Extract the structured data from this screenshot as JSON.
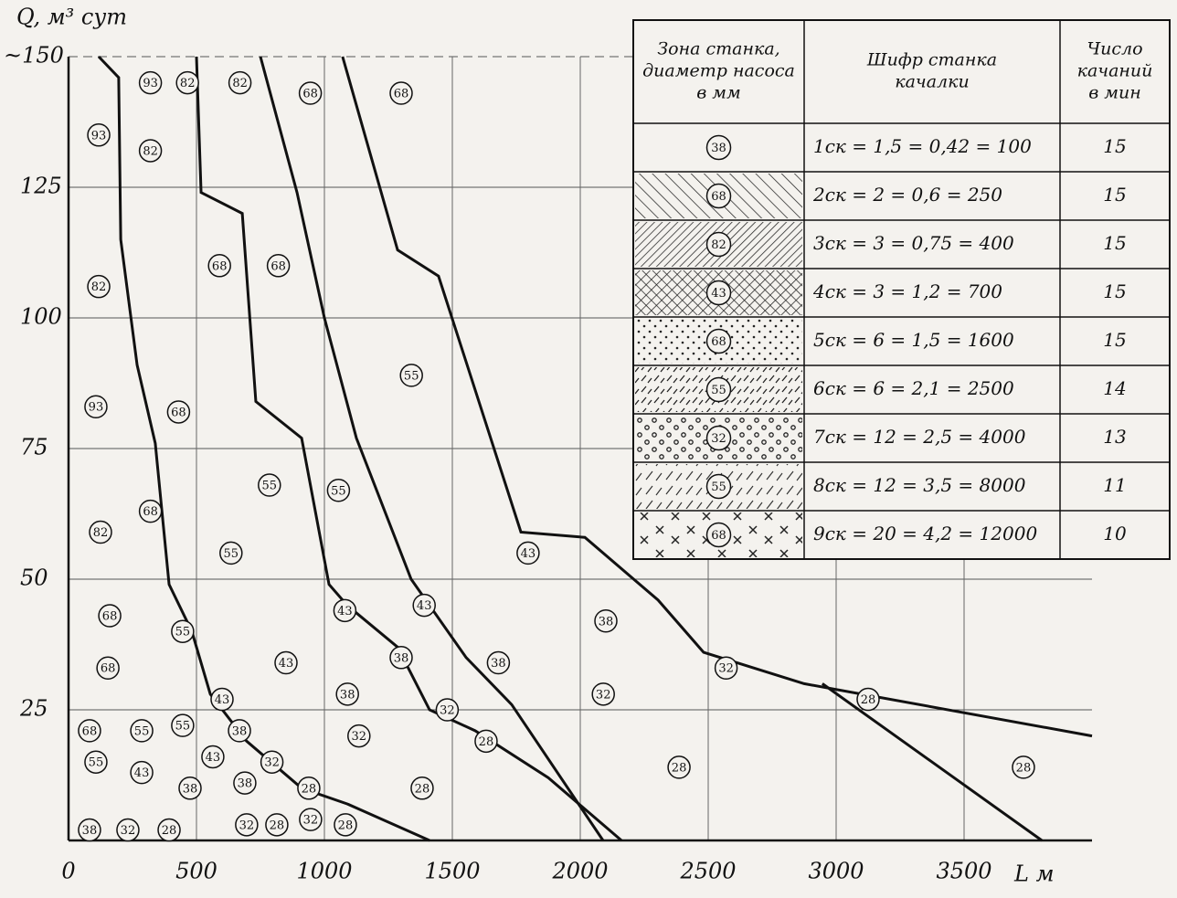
{
  "chart_data": {
    "type": "zones",
    "y_label": "Q, м³ сут",
    "x_label": "L м",
    "xlim": [
      0,
      4000
    ],
    "ylim": [
      0,
      150
    ],
    "xticks": [
      0,
      500,
      1000,
      1500,
      2000,
      2500,
      3000,
      3500
    ],
    "yticks": [
      25,
      50,
      75,
      100,
      125,
      {
        "value": 150,
        "label": "~150"
      }
    ],
    "grid": true,
    "series": [
      {
        "color": "#111",
        "x": [
          1071,
          1286,
          1446,
          1768,
          2018,
          2304,
          2482,
          2875,
          4000
        ],
        "values": [
          150,
          113,
          108,
          59,
          58,
          46,
          36,
          30,
          20
        ]
      },
      {
        "color": "#111",
        "x": [
          750,
          893,
          1000,
          1125,
          1339,
          1554,
          1732,
          2089
        ],
        "values": [
          150,
          124,
          100,
          77,
          50,
          35,
          26,
          0
        ]
      },
      {
        "color": "#111",
        "x": [
          500,
          518,
          679,
          732,
          911,
          1018,
          1089,
          1286,
          1411,
          1589,
          1875,
          2161
        ],
        "values": [
          150,
          124,
          120,
          84,
          77,
          49,
          45,
          37,
          25,
          21,
          12,
          0
        ]
      },
      {
        "color": "#111",
        "x": [
          118,
          196,
          204,
          268,
          339,
          393,
          482,
          554,
          696,
          911,
          1089,
          1411
        ],
        "values": [
          150,
          146,
          115,
          91,
          76,
          49,
          40,
          28,
          19,
          10,
          7,
          0
        ]
      },
      {
        "color": "#111",
        "x": [
          2946,
          3804
        ],
        "values": [
          30,
          0
        ]
      }
    ],
    "zone_labels": [
      {
        "label": "93",
        "x": 320,
        "y": 145
      },
      {
        "label": "82",
        "x": 465,
        "y": 145
      },
      {
        "label": "82",
        "x": 670,
        "y": 145
      },
      {
        "label": "68",
        "x": 945,
        "y": 143
      },
      {
        "label": "68",
        "x": 1300,
        "y": 143
      },
      {
        "label": "93",
        "x": 118,
        "y": 135
      },
      {
        "label": "82",
        "x": 320,
        "y": 132
      },
      {
        "label": "68",
        "x": 590,
        "y": 110
      },
      {
        "label": "68",
        "x": 820,
        "y": 110
      },
      {
        "label": "82",
        "x": 118,
        "y": 106
      },
      {
        "label": "55",
        "x": 1340,
        "y": 89
      },
      {
        "label": "93",
        "x": 107,
        "y": 83
      },
      {
        "label": "68",
        "x": 430,
        "y": 82
      },
      {
        "label": "55",
        "x": 785,
        "y": 68
      },
      {
        "label": "55",
        "x": 1055,
        "y": 67
      },
      {
        "label": "68",
        "x": 320,
        "y": 63
      },
      {
        "label": "82",
        "x": 125,
        "y": 59
      },
      {
        "label": "55",
        "x": 635,
        "y": 55
      },
      {
        "label": "43",
        "x": 1796,
        "y": 55
      },
      {
        "label": "68",
        "x": 161,
        "y": 43
      },
      {
        "label": "43",
        "x": 1080,
        "y": 44
      },
      {
        "label": "43",
        "x": 1390,
        "y": 45
      },
      {
        "label": "38",
        "x": 2100,
        "y": 42
      },
      {
        "label": "55",
        "x": 446,
        "y": 40
      },
      {
        "label": "43",
        "x": 850,
        "y": 34
      },
      {
        "label": "38",
        "x": 1300,
        "y": 35
      },
      {
        "label": "38",
        "x": 1680,
        "y": 34
      },
      {
        "label": "68",
        "x": 154,
        "y": 33
      },
      {
        "label": "32",
        "x": 2570,
        "y": 33
      },
      {
        "label": "38",
        "x": 1090,
        "y": 28
      },
      {
        "label": "43",
        "x": 600,
        "y": 27
      },
      {
        "label": "32",
        "x": 1480,
        "y": 25
      },
      {
        "label": "32",
        "x": 2090,
        "y": 28
      },
      {
        "label": "28",
        "x": 3125,
        "y": 27
      },
      {
        "label": "55",
        "x": 286,
        "y": 21
      },
      {
        "label": "55",
        "x": 446,
        "y": 22
      },
      {
        "label": "38",
        "x": 668,
        "y": 21
      },
      {
        "label": "68",
        "x": 82,
        "y": 21
      },
      {
        "label": "32",
        "x": 1135,
        "y": 20
      },
      {
        "label": "43",
        "x": 564,
        "y": 16
      },
      {
        "label": "55",
        "x": 107,
        "y": 15
      },
      {
        "label": "28",
        "x": 1632,
        "y": 19
      },
      {
        "label": "28",
        "x": 3732,
        "y": 14
      },
      {
        "label": "43",
        "x": 286,
        "y": 13
      },
      {
        "label": "38",
        "x": 475,
        "y": 10
      },
      {
        "label": "38",
        "x": 689,
        "y": 11
      },
      {
        "label": "32",
        "x": 795,
        "y": 15
      },
      {
        "label": "28",
        "x": 939,
        "y": 10
      },
      {
        "label": "28",
        "x": 1382,
        "y": 10
      },
      {
        "label": "28",
        "x": 2386,
        "y": 14
      },
      {
        "label": "38",
        "x": 82,
        "y": 2
      },
      {
        "label": "32",
        "x": 232,
        "y": 2
      },
      {
        "label": "28",
        "x": 393,
        "y": 2
      },
      {
        "label": "32",
        "x": 696,
        "y": 3
      },
      {
        "label": "28",
        "x": 814,
        "y": 3
      },
      {
        "label": "32",
        "x": 946,
        "y": 4
      },
      {
        "label": "28",
        "x": 1082,
        "y": 3
      }
    ]
  },
  "table": {
    "headers": [
      "Зона станка, диаметр насоса в мм",
      "Шифр станка качалки",
      "Число качаний в мин"
    ],
    "rows": [
      {
        "zone": "38",
        "code": "1ск = 1,5 = 0,42 = 100",
        "rate": "15",
        "pattern": "none"
      },
      {
        "zone": "68",
        "code": "2ск = 2 = 0,6 = 250",
        "rate": "15",
        "pattern": "hatch"
      },
      {
        "zone": "82",
        "code": "3ск = 3 = 0,75 = 400",
        "rate": "15",
        "pattern": "hatch-dense"
      },
      {
        "zone": "43",
        "code": "4ск = 3 = 1,2 = 700",
        "rate": "15",
        "pattern": "crosshatch"
      },
      {
        "zone": "68",
        "code": "5ск = 6 = 1,5 = 1600",
        "rate": "15",
        "pattern": "dots"
      },
      {
        "zone": "55",
        "code": "6ск = 6 = 2,1 = 2500",
        "rate": "14",
        "pattern": "dashes"
      },
      {
        "zone": "32",
        "code": "7ск = 12 = 2,5 = 4000",
        "rate": "13",
        "pattern": "circles"
      },
      {
        "zone": "55",
        "code": "8ск = 12 = 3,5 = 8000",
        "rate": "11",
        "pattern": "dashes-light"
      },
      {
        "zone": "68",
        "code": "9ск = 20 = 4,2 = 12000",
        "rate": "10",
        "pattern": "crosses"
      }
    ]
  }
}
